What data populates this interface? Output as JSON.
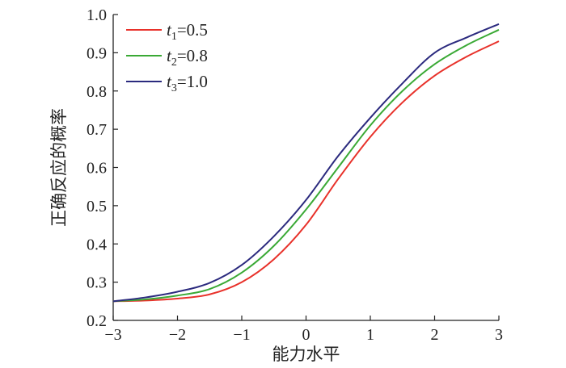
{
  "chart_data": {
    "type": "line",
    "xlabel": "能力水平",
    "ylabel": "正确反应的概率",
    "xlim": [
      -3,
      3
    ],
    "ylim": [
      0.2,
      1.0
    ],
    "xticks": [
      -3,
      -2,
      -1,
      0,
      1,
      2,
      3
    ],
    "xtick_labels": [
      "−3",
      "−2",
      "−1",
      "0",
      "1",
      "2",
      "3"
    ],
    "yticks": [
      0.2,
      0.3,
      0.4,
      0.5,
      0.6,
      0.7,
      0.8,
      0.9,
      1.0
    ],
    "ytick_labels": [
      "0.2",
      "0.3",
      "0.4",
      "0.5",
      "0.6",
      "0.7",
      "0.8",
      "0.9",
      "1.0"
    ],
    "grid": false,
    "legend_position": "top-left",
    "series": [
      {
        "name": "t1=0.5",
        "legend_var": "t",
        "legend_sub": "1",
        "legend_value": "=0.5",
        "color": "#e8312a",
        "x": [
          -3,
          -2.5,
          -2,
          -1.5,
          -1,
          -0.5,
          0,
          0.5,
          1,
          1.5,
          2,
          2.5,
          3
        ],
        "y": [
          0.25,
          0.252,
          0.257,
          0.268,
          0.3,
          0.36,
          0.45,
          0.57,
          0.68,
          0.77,
          0.84,
          0.89,
          0.93
        ]
      },
      {
        "name": "t2=0.8",
        "legend_var": "t",
        "legend_sub": "2",
        "legend_value": "=0.8",
        "color": "#3aa935",
        "x": [
          -3,
          -2.5,
          -2,
          -1.5,
          -1,
          -0.5,
          0,
          0.5,
          1,
          1.5,
          2,
          2.5,
          3
        ],
        "y": [
          0.25,
          0.255,
          0.265,
          0.282,
          0.325,
          0.395,
          0.49,
          0.6,
          0.71,
          0.8,
          0.87,
          0.92,
          0.96
        ]
      },
      {
        "name": "t3=1.0",
        "legend_var": "t",
        "legend_sub": "3",
        "legend_value": "=1.0",
        "color": "#2b2a7e",
        "x": [
          -3,
          -2.5,
          -2,
          -1.5,
          -1,
          -0.5,
          0,
          0.5,
          1,
          1.5,
          2,
          2.5,
          3
        ],
        "y": [
          0.25,
          0.26,
          0.275,
          0.298,
          0.345,
          0.42,
          0.515,
          0.63,
          0.73,
          0.82,
          0.9,
          0.94,
          0.975
        ]
      }
    ]
  }
}
